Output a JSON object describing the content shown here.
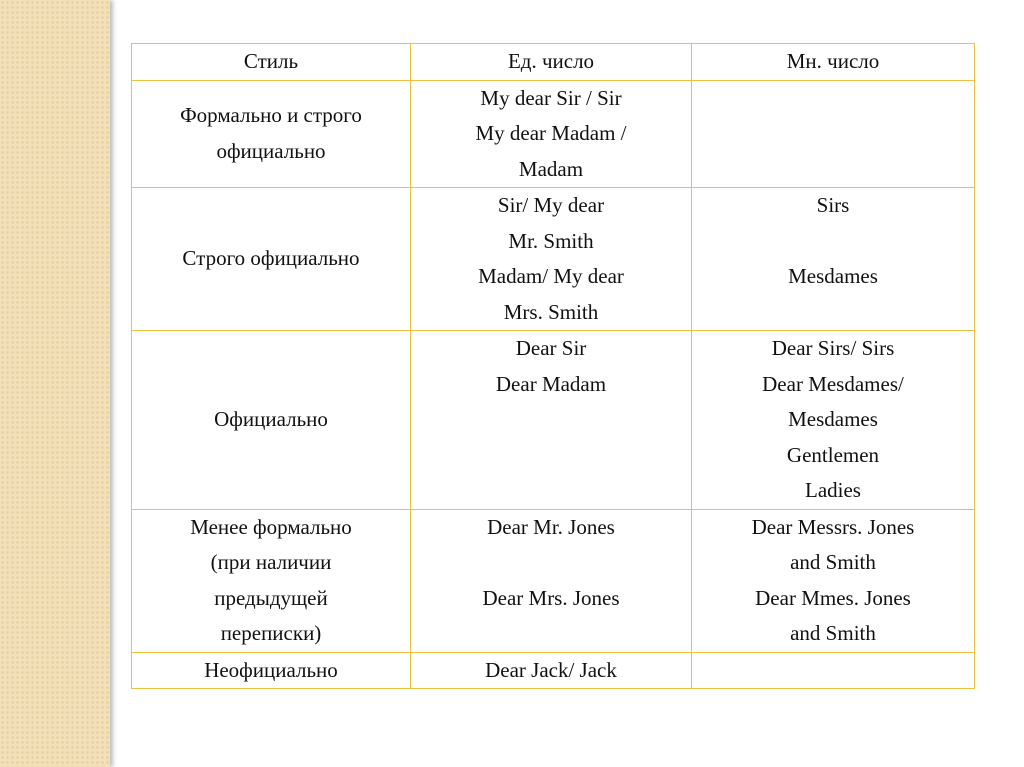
{
  "table": {
    "headers": [
      "Стиль",
      "Ед. число",
      "Мн. число"
    ],
    "rows": [
      {
        "style": [
          "Формально и строго",
          "официально"
        ],
        "singular": [
          "My dear Sir / Sir",
          "My dear Madam /",
          "Madam"
        ],
        "plural": []
      },
      {
        "style": [
          "Строго официально"
        ],
        "singular": [
          "Sir/ My dear",
          "Mr. Smith",
          "Madam/ My dear",
          "Mrs. Smith"
        ],
        "plural": [
          "Sirs",
          "",
          "Mesdames"
        ]
      },
      {
        "style": [
          "Официально"
        ],
        "singular": [
          "Dear Sir",
          "Dear Madam"
        ],
        "plural": [
          "Dear Sirs/ Sirs",
          "Dear Mesdames/",
          "Mesdames",
          "Gentlemen",
          "Ladies"
        ]
      },
      {
        "style": [
          "Менее формально",
          "(при наличии",
          "предыдущей",
          "переписки)"
        ],
        "singular": [
          "Dear Mr. Jones",
          "",
          "Dear Mrs. Jones"
        ],
        "plural": [
          "Dear Messrs. Jones",
          "and Smith",
          "Dear Mmes. Jones",
          "and Smith"
        ]
      },
      {
        "style": [
          "Неофициально"
        ],
        "singular": [
          "Dear Jack/ Jack"
        ],
        "plural": []
      }
    ]
  },
  "colors": {
    "border": "#f0c040",
    "sidebar": "#f1e0b9"
  }
}
